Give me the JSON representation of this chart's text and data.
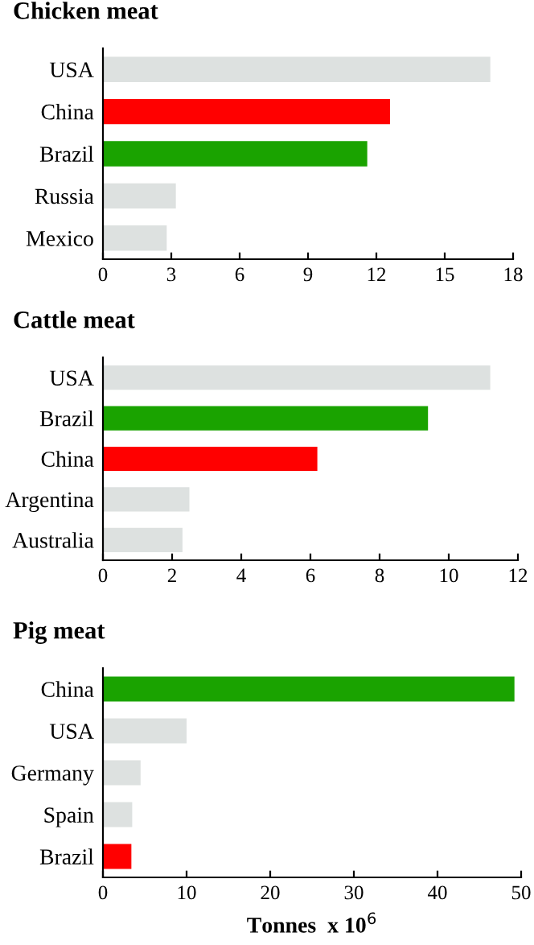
{
  "chart_data": [
    {
      "type": "bar",
      "orientation": "horizontal",
      "title": "Chicken meat",
      "categories": [
        "USA",
        "China",
        "Brazil",
        "Russia",
        "Mexico"
      ],
      "values": [
        17.0,
        12.6,
        11.6,
        3.2,
        2.8
      ],
      "colors": [
        "#dde1e0",
        "#ff0000",
        "#1aa300",
        "#dde1e0",
        "#dde1e0"
      ],
      "xlim": [
        0,
        18
      ],
      "xticks": [
        0,
        3,
        6,
        9,
        12,
        15,
        18
      ],
      "grid": false,
      "legend": false
    },
    {
      "type": "bar",
      "orientation": "horizontal",
      "title": "Cattle meat",
      "categories": [
        "USA",
        "Brazil",
        "China",
        "Argentina",
        "Australia"
      ],
      "values": [
        11.2,
        9.4,
        6.2,
        2.5,
        2.3
      ],
      "colors": [
        "#dde1e0",
        "#1aa300",
        "#ff0000",
        "#dde1e0",
        "#dde1e0"
      ],
      "xlim": [
        0,
        12
      ],
      "xticks": [
        0,
        2,
        4,
        6,
        8,
        10,
        12
      ],
      "grid": false,
      "legend": false
    },
    {
      "type": "bar",
      "orientation": "horizontal",
      "title": "Pig meat",
      "xlabel": "Tonnes  x 10$^{6}$",
      "categories": [
        "China",
        "USA",
        "Germany",
        "Spain",
        "Brazil"
      ],
      "values": [
        49.2,
        10.0,
        4.5,
        3.5,
        3.4
      ],
      "colors": [
        "#1aa300",
        "#dde1e0",
        "#dde1e0",
        "#dde1e0",
        "#ff0000"
      ],
      "xlim": [
        0,
        50
      ],
      "xticks": [
        0,
        10,
        20,
        30,
        40,
        50
      ],
      "grid": false,
      "legend": false
    }
  ]
}
